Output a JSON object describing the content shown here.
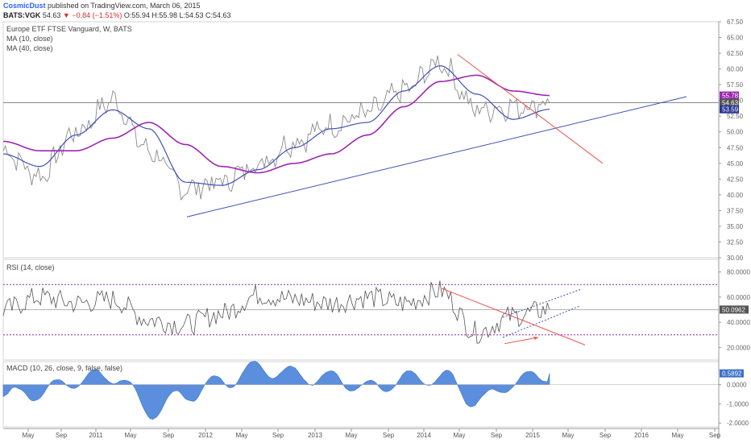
{
  "header": {
    "author": "CosmicDust",
    "published": "published on TradingView.com, March 06, 2015",
    "symbol": "BATS:VGK",
    "last": "54.63",
    "arrow": "▼",
    "change": "−0.84 (−1.51%)",
    "ohlc": "O:55.94 H:55.98 L:54.53 C:54.63"
  },
  "main_pane": {
    "title": "Europe ETF FTSE Vanguard, W, BATS",
    "ma1_label": "MA (10, close)",
    "ma2_label": "MA (40, close)",
    "y_ticks": [
      "67.50",
      "65.00",
      "62.50",
      "60.00",
      "57.50",
      "55.00",
      "52.50",
      "50.00",
      "47.50",
      "45.00",
      "42.50",
      "40.00",
      "37.50",
      "35.00",
      "32.50",
      "30.00"
    ],
    "badges": [
      {
        "text": "55.78",
        "color": "#9c27b0",
        "v": 55.78
      },
      {
        "text": "54.63",
        "color": "#555555",
        "v": 54.63
      },
      {
        "text": "53.59",
        "color": "#283593",
        "v": 53.59
      }
    ]
  },
  "rsi_pane": {
    "label": "RSI (14, close)",
    "y_ticks": [
      "80.0000",
      "60.0000",
      "40.0000",
      "20.0000"
    ],
    "badge": "50.0962",
    "upper": 70,
    "lower": 30
  },
  "macd_pane": {
    "label": "MACD (10, 26, close, 9, false, false)",
    "y_ticks": [
      "0.0000",
      "-1.0000",
      "-2.0000"
    ],
    "badge": "0.5892"
  },
  "x_axis": [
    "May",
    "Sep",
    "2011",
    "May",
    "Sep",
    "2012",
    "May",
    "Sep",
    "2013",
    "May",
    "Sep",
    "2014",
    "May",
    "Sep",
    "2015",
    "May",
    "Sep",
    "2016",
    "May",
    "Sep"
  ],
  "colors": {
    "price": "#8a8a8a",
    "ma10": "#3f51b5",
    "ma40": "#9c27b0",
    "trend_red": "#ef5350",
    "trend_blue": "#3f51b5",
    "macd_fill": "#5b8fde",
    "rsi_band": "#9c27b0"
  },
  "chart_data": [
    {
      "type": "line",
      "title": "Europe ETF FTSE Vanguard, W, BATS",
      "x": [
        "2010-05",
        "2010-09",
        "2011-01",
        "2011-05",
        "2011-09",
        "2012-01",
        "2012-05",
        "2012-09",
        "2013-01",
        "2013-05",
        "2013-09",
        "2014-01",
        "2014-05",
        "2014-09",
        "2015-01",
        "2015-03"
      ],
      "series": [
        {
          "name": "MA (10, close)",
          "values": [
            46.5,
            44.5,
            49.5,
            53.5,
            50.5,
            42.0,
            41.5,
            44.0,
            47.5,
            50.5,
            51.5,
            56.5,
            60.5,
            56.0,
            52.0,
            53.59
          ]
        },
        {
          "name": "MA (40, close)",
          "values": [
            48.5,
            47.0,
            47.0,
            49.0,
            51.5,
            48.0,
            44.5,
            43.5,
            45.0,
            46.5,
            49.5,
            54.0,
            58.0,
            59.0,
            56.5,
            55.78
          ]
        }
      ],
      "price": [
        47.0,
        43.0,
        50.0,
        55.0,
        47.0,
        41.0,
        42.0,
        45.0,
        48.5,
        51.0,
        53.0,
        56.5,
        61.0,
        53.5,
        54.0,
        54.63
      ],
      "ylim": [
        30.0,
        67.5
      ]
    },
    {
      "type": "line",
      "title": "RSI (14, close)",
      "x": [
        "2010-05",
        "2010-09",
        "2011-01",
        "2011-05",
        "2011-09",
        "2012-01",
        "2012-05",
        "2012-09",
        "2013-01",
        "2013-05",
        "2013-09",
        "2014-01",
        "2014-05",
        "2014-09",
        "2015-01",
        "2015-03"
      ],
      "series": [
        {
          "name": "RSI (14, close)",
          "values": [
            50,
            60,
            55,
            58,
            42,
            38,
            47,
            62,
            58,
            55,
            60,
            55,
            65,
            32,
            45,
            50.0962
          ]
        }
      ],
      "ylim": [
        10,
        90
      ]
    },
    {
      "type": "area",
      "title": "MACD (10, 26, close, 9, false, false)",
      "x": [
        "2010-05",
        "2010-09",
        "2011-01",
        "2011-05",
        "2011-09",
        "2012-01",
        "2012-05",
        "2012-09",
        "2013-01",
        "2013-05",
        "2013-09",
        "2014-01",
        "2014-05",
        "2014-09",
        "2015-01",
        "2015-03"
      ],
      "series": [
        {
          "name": "MACD",
          "values": [
            -0.6,
            -0.4,
            0.3,
            0.5,
            -1.4,
            -0.5,
            0.2,
            0.9,
            0.5,
            0.3,
            -0.2,
            0.3,
            0.4,
            -0.9,
            0.2,
            0.5892
          ]
        }
      ],
      "ylim": [
        -2.2,
        1.2
      ]
    }
  ]
}
